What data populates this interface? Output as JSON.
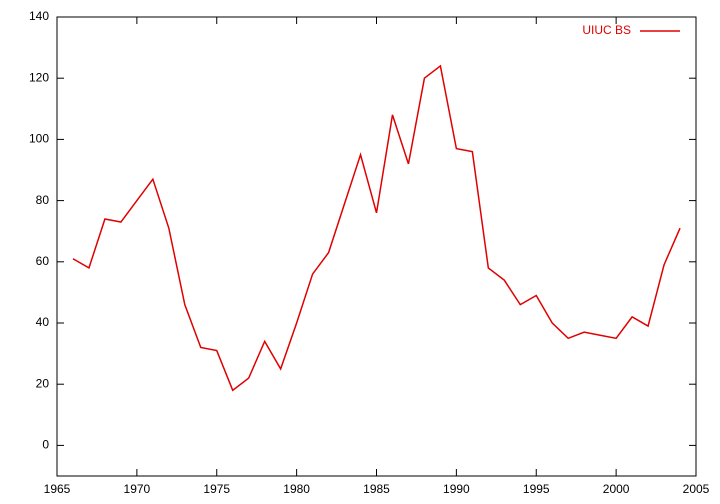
{
  "chart_data": {
    "type": "line",
    "x": [
      1966,
      1967,
      1968,
      1969,
      1970,
      1971,
      1972,
      1973,
      1974,
      1975,
      1976,
      1977,
      1978,
      1979,
      1980,
      1981,
      1982,
      1983,
      1984,
      1985,
      1986,
      1987,
      1988,
      1989,
      1990,
      1991,
      1992,
      1993,
      1994,
      1995,
      1996,
      1997,
      1998,
      1999,
      2000,
      2001,
      2002,
      2003,
      2004
    ],
    "series": [
      {
        "name": "UIUC BS",
        "color": "#e00000",
        "values": [
          61,
          58,
          74,
          73,
          80,
          87,
          71,
          46,
          32,
          31,
          18,
          22,
          34,
          25,
          40,
          56,
          63,
          79,
          95,
          76,
          108,
          92,
          120,
          124,
          97,
          96,
          58,
          54,
          46,
          49,
          40,
          35,
          37,
          36,
          35,
          42,
          39,
          59,
          71
        ]
      }
    ],
    "xlim": [
      1965,
      2005
    ],
    "xticks": [
      1965,
      1970,
      1975,
      1980,
      1985,
      1990,
      1995,
      2000,
      2005
    ],
    "ylim": [
      -10,
      140
    ],
    "yticks": [
      0,
      20,
      40,
      60,
      80,
      100,
      120,
      140
    ],
    "legend": "top-right"
  }
}
